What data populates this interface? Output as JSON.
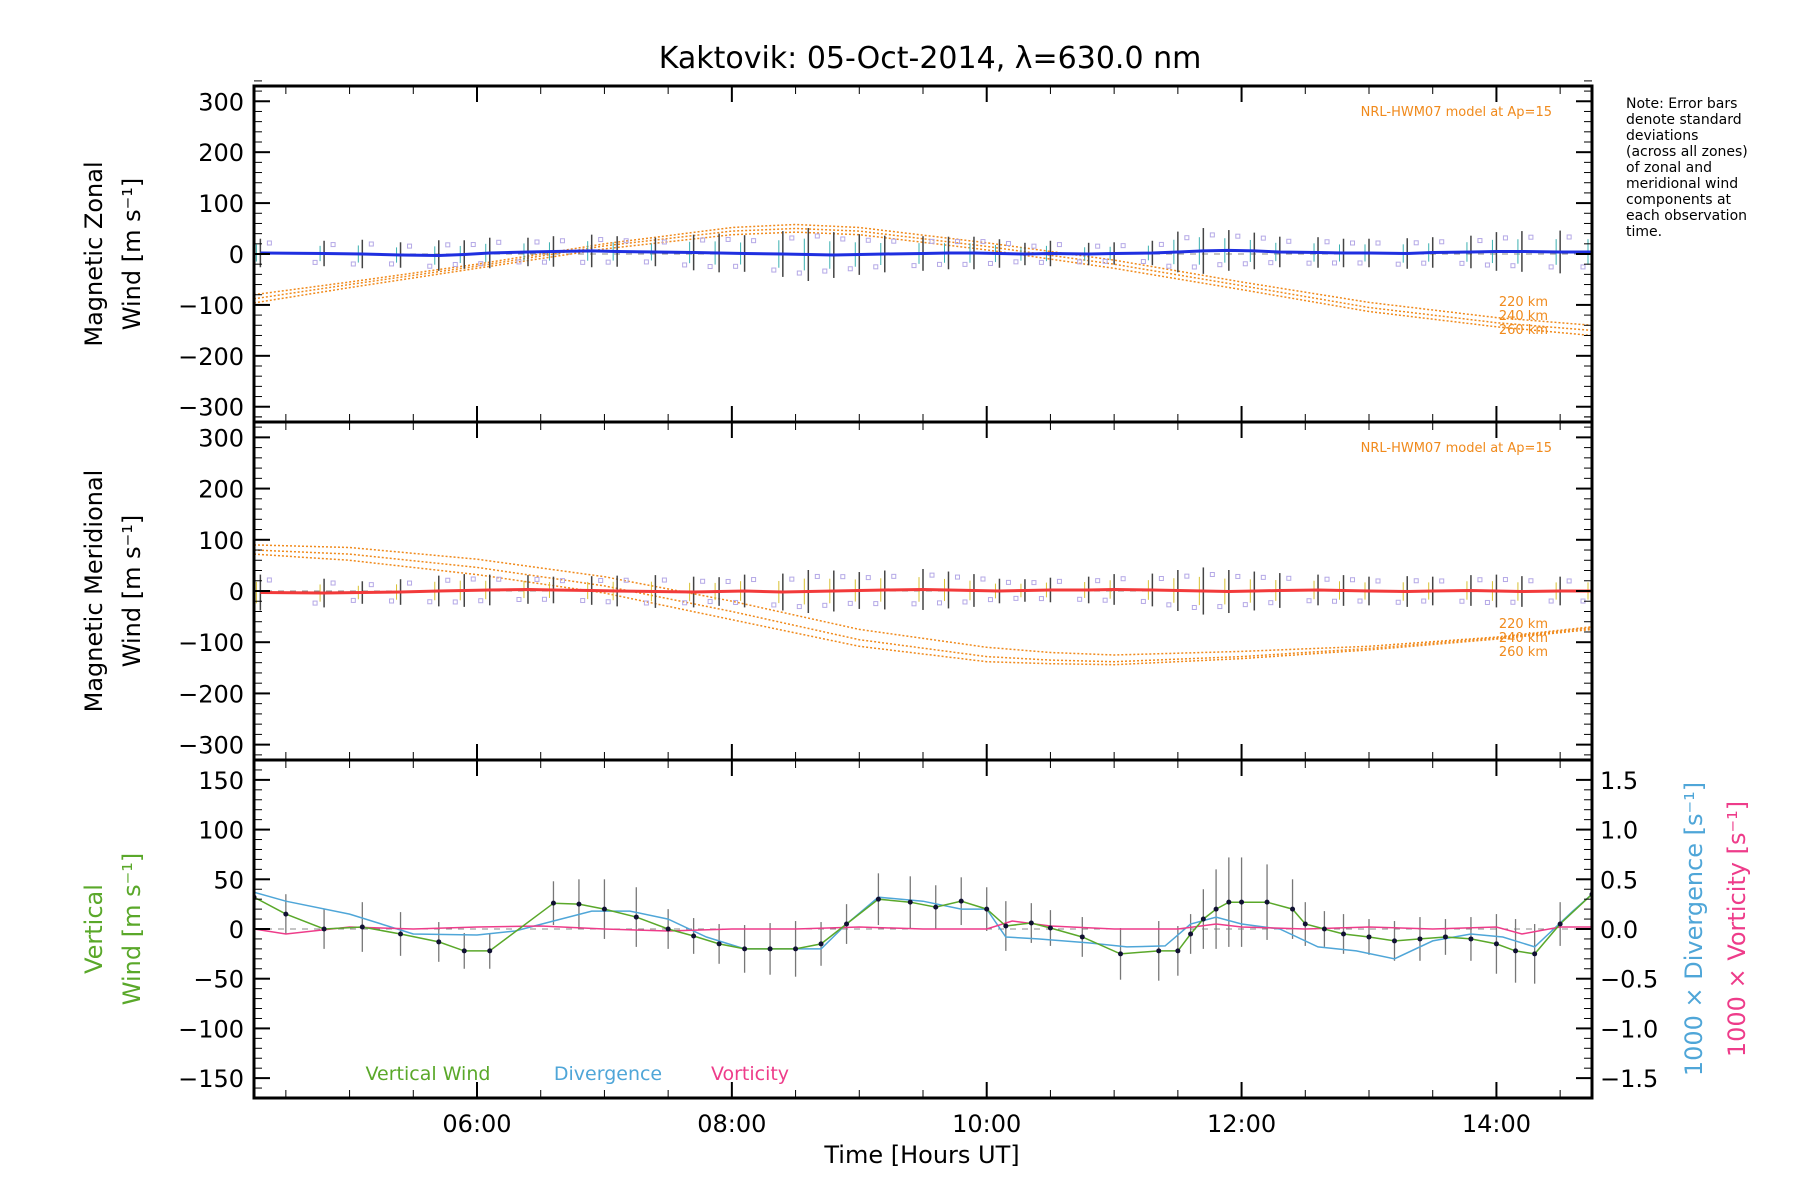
{
  "title": "Kaktovik: 05-Oct-2014, λ=630.0 nm",
  "xlabel": "Time [Hours UT]",
  "note": [
    "Note: Error bars",
    "denote standard",
    "deviations",
    "(across all zones)",
    "of zonal and",
    "meridional wind",
    "components at",
    "each observation",
    "time."
  ],
  "model_label": "NRL-HWM07 model at Ap=15",
  "model_altitudes": [
    "220 km",
    "240 km",
    "260 km"
  ],
  "colors": {
    "zonal": "#1f2fe0",
    "meridional": "#f23a3a",
    "model": "#f08a1c",
    "vertical": "#5aa82a",
    "divergence": "#4fa6d8",
    "vorticity": "#ee3c8a",
    "errorbar": "#444444",
    "zone_marker": "#b4a8e6"
  },
  "chart_data": [
    {
      "type": "line",
      "name": "zonal",
      "ylabel_top": "Magnetic Zonal",
      "ylabel_bottom": "Wind [m s⁻¹]",
      "xlim": [
        4.25,
        14.75
      ],
      "ylim": [
        -330,
        330
      ],
      "yticks": [
        300,
        200,
        100,
        0,
        -100,
        -200,
        -300
      ],
      "xticks": [
        6,
        8,
        10,
        12,
        14
      ],
      "x": [
        4.3,
        4.8,
        5.1,
        5.4,
        5.7,
        5.9,
        6.1,
        6.4,
        6.6,
        6.9,
        7.1,
        7.4,
        7.7,
        7.9,
        8.1,
        8.4,
        8.6,
        8.8,
        9.0,
        9.2,
        9.5,
        9.7,
        9.9,
        10.1,
        10.3,
        10.5,
        10.8,
        11.0,
        11.3,
        11.5,
        11.7,
        11.9,
        12.1,
        12.3,
        12.6,
        12.8,
        13.0,
        13.3,
        13.5,
        13.8,
        14.0,
        14.2,
        14.5,
        14.75
      ],
      "values": [
        2,
        1,
        0,
        -2,
        -3,
        -1,
        2,
        4,
        5,
        6,
        5,
        4,
        3,
        2,
        1,
        0,
        -1,
        -2,
        -1,
        0,
        1,
        2,
        2,
        1,
        0,
        1,
        0,
        1,
        2,
        4,
        6,
        7,
        6,
        4,
        3,
        2,
        2,
        1,
        3,
        4,
        5,
        5,
        4,
        4
      ],
      "errors": [
        28,
        25,
        28,
        25,
        30,
        28,
        30,
        28,
        30,
        32,
        30,
        28,
        35,
        38,
        36,
        45,
        52,
        45,
        40,
        36,
        34,
        32,
        32,
        28,
        22,
        25,
        22,
        22,
        24,
        40,
        45,
        40,
        36,
        30,
        30,
        28,
        28,
        30,
        30,
        32,
        38,
        40,
        42,
        42
      ],
      "model_label": "NRL-HWM07 model at Ap=15",
      "model": [
        {
          "name": "220 km",
          "x": [
            4.25,
            5.0,
            6.0,
            7.0,
            8.0,
            8.5,
            9.0,
            10.0,
            11.0,
            12.0,
            13.0,
            14.0,
            14.75
          ],
          "values": [
            -80,
            -55,
            -20,
            20,
            52,
            58,
            52,
            22,
            -12,
            -55,
            -95,
            -125,
            -140
          ]
        },
        {
          "name": "240 km",
          "x": [
            4.25,
            5.0,
            6.0,
            7.0,
            8.0,
            8.5,
            9.0,
            10.0,
            11.0,
            12.0,
            13.0,
            14.0,
            14.75
          ],
          "values": [
            -88,
            -60,
            -24,
            16,
            45,
            50,
            45,
            15,
            -20,
            -62,
            -105,
            -135,
            -150
          ]
        },
        {
          "name": "260 km",
          "x": [
            4.25,
            5.0,
            6.0,
            7.0,
            8.0,
            8.5,
            9.0,
            10.0,
            11.0,
            12.0,
            13.0,
            14.0,
            14.75
          ],
          "values": [
            -96,
            -66,
            -28,
            10,
            38,
            43,
            38,
            8,
            -28,
            -70,
            -113,
            -143,
            -160
          ]
        }
      ]
    },
    {
      "type": "line",
      "name": "meridional",
      "ylabel_top": "Magnetic Meridional",
      "ylabel_bottom": "Wind [m s⁻¹]",
      "xlim": [
        4.25,
        14.75
      ],
      "ylim": [
        -330,
        330
      ],
      "yticks": [
        300,
        200,
        100,
        0,
        -100,
        -200,
        -300
      ],
      "xticks": [
        6,
        8,
        10,
        12,
        14
      ],
      "x": [
        4.3,
        4.8,
        5.1,
        5.4,
        5.7,
        5.9,
        6.1,
        6.4,
        6.6,
        6.9,
        7.1,
        7.4,
        7.7,
        7.9,
        8.1,
        8.4,
        8.6,
        8.8,
        9.0,
        9.2,
        9.5,
        9.7,
        9.9,
        10.1,
        10.3,
        10.5,
        10.8,
        11.0,
        11.3,
        11.5,
        11.7,
        11.9,
        12.1,
        12.3,
        12.6,
        12.8,
        13.0,
        13.3,
        13.5,
        13.8,
        14.0,
        14.2,
        14.5,
        14.75
      ],
      "values": [
        -3,
        -4,
        -3,
        -2,
        0,
        1,
        2,
        3,
        2,
        1,
        0,
        -1,
        -2,
        -1,
        0,
        -2,
        -1,
        0,
        1,
        2,
        3,
        2,
        1,
        0,
        1,
        2,
        2,
        3,
        2,
        1,
        0,
        -1,
        0,
        1,
        2,
        1,
        0,
        -1,
        0,
        1,
        0,
        -1,
        0,
        0
      ],
      "errors": [
        35,
        28,
        22,
        25,
        30,
        32,
        30,
        28,
        26,
        28,
        30,
        32,
        30,
        28,
        32,
        36,
        42,
        40,
        36,
        38,
        40,
        36,
        32,
        24,
        22,
        24,
        26,
        30,
        32,
        40,
        46,
        42,
        38,
        34,
        30,
        30,
        28,
        30,
        28,
        30,
        32,
        30,
        28,
        28
      ],
      "model_label": "NRL-HWM07 model at Ap=15",
      "model": [
        {
          "name": "220 km",
          "x": [
            4.25,
            5.0,
            6.0,
            7.0,
            8.0,
            9.0,
            10.0,
            10.5,
            11.0,
            12.0,
            13.0,
            14.0,
            14.75
          ],
          "values": [
            90,
            85,
            62,
            28,
            -20,
            -75,
            -110,
            -120,
            -125,
            -118,
            -108,
            -90,
            -70
          ]
        },
        {
          "name": "240 km",
          "x": [
            4.25,
            5.0,
            6.0,
            7.0,
            8.0,
            9.0,
            10.0,
            10.5,
            11.0,
            12.0,
            13.0,
            14.0,
            14.75
          ],
          "values": [
            80,
            72,
            46,
            10,
            -40,
            -95,
            -128,
            -135,
            -138,
            -128,
            -112,
            -92,
            -72
          ]
        },
        {
          "name": "260 km",
          "x": [
            4.25,
            5.0,
            6.0,
            7.0,
            8.0,
            9.0,
            10.0,
            10.5,
            11.0,
            12.0,
            13.0,
            14.0,
            14.75
          ],
          "values": [
            72,
            60,
            32,
            -4,
            -56,
            -108,
            -138,
            -142,
            -144,
            -132,
            -115,
            -94,
            -75
          ]
        }
      ]
    },
    {
      "type": "line",
      "name": "vertical",
      "ylabel_top": "Vertical",
      "ylabel_bottom": "Wind [m s⁻¹]",
      "right_label_1": "1000 × Divergence [s⁻¹]",
      "right_label_2": "1000 × Vorticity [s⁻¹]",
      "xlim": [
        4.25,
        14.75
      ],
      "ylim": [
        -170,
        170
      ],
      "yticks": [
        150,
        100,
        50,
        0,
        -50,
        -100,
        -150
      ],
      "y2lim": [
        -1.7,
        1.7
      ],
      "y2ticks": [
        1.5,
        1.0,
        0.5,
        0.0,
        -0.5,
        -1.0,
        -1.5
      ],
      "xticks": [
        6,
        8,
        10,
        12,
        14
      ],
      "legend": [
        "Vertical Wind",
        "Divergence",
        "Vorticity"
      ],
      "series": [
        {
          "name": "Vertical Wind",
          "x": [
            4.25,
            4.5,
            4.8,
            5.1,
            5.4,
            5.7,
            5.9,
            6.1,
            6.6,
            6.8,
            7.0,
            7.25,
            7.5,
            7.7,
            7.9,
            8.1,
            8.3,
            8.5,
            8.7,
            8.9,
            9.15,
            9.4,
            9.6,
            9.8,
            10.0,
            10.15,
            10.35,
            10.5,
            10.75,
            11.05,
            11.35,
            11.5,
            11.6,
            11.7,
            11.8,
            11.9,
            12.0,
            12.2,
            12.4,
            12.5,
            12.65,
            12.8,
            13.0,
            13.2,
            13.4,
            13.6,
            13.8,
            14.0,
            14.15,
            14.3,
            14.5,
            14.75
          ],
          "values": [
            32,
            15,
            0,
            2,
            -5,
            -13,
            -22,
            -22,
            26,
            25,
            20,
            12,
            0,
            -7,
            -15,
            -20,
            -20,
            -20,
            -15,
            5,
            30,
            27,
            22,
            28,
            20,
            3,
            6,
            1,
            -8,
            -25,
            -22,
            -22,
            -5,
            10,
            20,
            27,
            27,
            27,
            20,
            5,
            0,
            -5,
            -8,
            -12,
            -10,
            -8,
            -10,
            -15,
            -22,
            -25,
            5,
            35
          ]
        },
        {
          "name": "Divergence",
          "x": [
            4.25,
            4.5,
            5.0,
            5.5,
            6.0,
            6.3,
            6.6,
            6.9,
            7.2,
            7.5,
            7.8,
            8.1,
            8.4,
            8.7,
            8.9,
            9.15,
            9.5,
            9.8,
            10.0,
            10.15,
            10.4,
            10.8,
            11.1,
            11.4,
            11.6,
            11.8,
            12.0,
            12.3,
            12.6,
            12.9,
            13.2,
            13.5,
            13.8,
            14.05,
            14.3,
            14.6,
            14.75
          ],
          "values": [
            0.37,
            0.28,
            0.15,
            -0.05,
            -0.06,
            -0.02,
            0.08,
            0.18,
            0.18,
            0.1,
            -0.08,
            -0.2,
            -0.2,
            -0.2,
            0.05,
            0.32,
            0.28,
            0.2,
            0.2,
            -0.08,
            -0.1,
            -0.14,
            -0.18,
            -0.17,
            0.05,
            0.12,
            0.05,
            0.0,
            -0.18,
            -0.22,
            -0.3,
            -0.12,
            -0.05,
            -0.08,
            -0.18,
            0.18,
            0.35
          ]
        },
        {
          "name": "Vorticity",
          "x": [
            4.25,
            4.5,
            5.0,
            5.5,
            6.0,
            6.5,
            7.0,
            7.5,
            8.0,
            8.5,
            9.0,
            9.5,
            10.0,
            10.2,
            10.5,
            11.0,
            11.5,
            11.8,
            12.0,
            12.5,
            13.0,
            13.5,
            14.0,
            14.2,
            14.5,
            14.75
          ],
          "values": [
            0.0,
            -0.05,
            0.02,
            0.0,
            0.02,
            0.03,
            0.0,
            -0.02,
            0.0,
            0.0,
            0.02,
            0.0,
            0.0,
            0.08,
            0.03,
            0.0,
            0.0,
            0.05,
            0.02,
            0.0,
            0.02,
            0.0,
            0.02,
            -0.05,
            0.02,
            0.02
          ]
        }
      ],
      "errors": [
        25,
        20,
        20,
        25,
        22,
        20,
        18,
        18,
        22,
        25,
        30,
        30,
        20,
        18,
        20,
        24,
        26,
        28,
        22,
        20,
        26,
        26,
        22,
        24,
        22,
        25,
        20,
        18,
        20,
        26,
        30,
        25,
        20,
        30,
        40,
        45,
        45,
        38,
        30,
        22,
        18,
        20,
        18,
        20,
        22,
        18,
        22,
        30,
        32,
        30,
        22,
        18
      ]
    }
  ]
}
